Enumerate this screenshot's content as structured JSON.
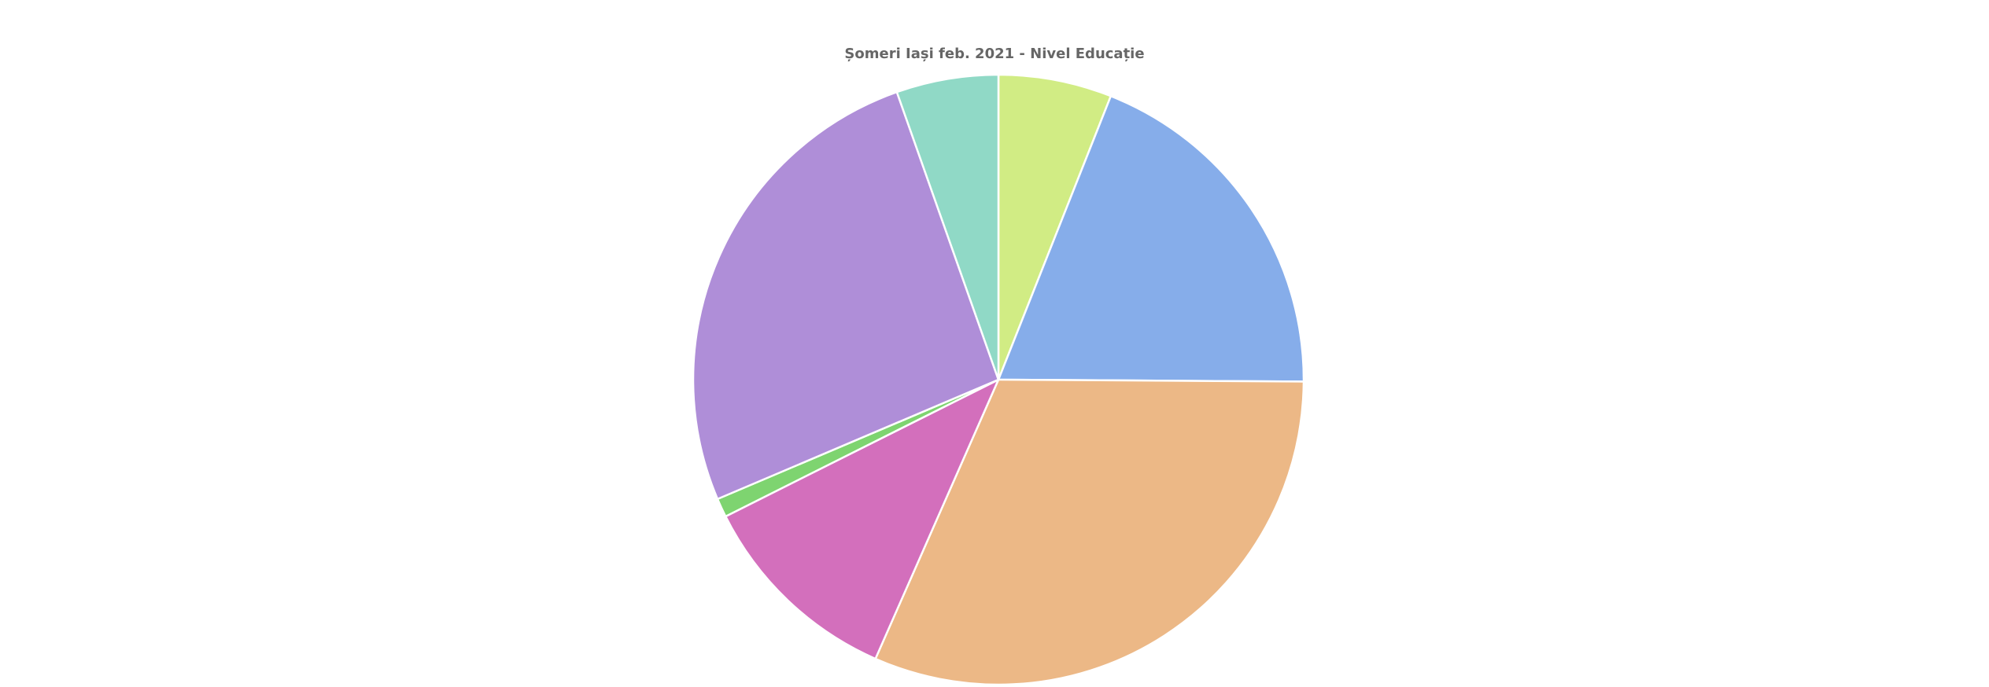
{
  "chart_data": {
    "type": "pie",
    "title": "Șomeri Iași feb. 2021 - Nivel Educație",
    "start_angle_deg": 0,
    "direction": "clockwise",
    "legend": "none",
    "slices": [
      {
        "value": 6.0,
        "color": "#d1ec84"
      },
      {
        "value": 19.1,
        "color": "#86adea"
      },
      {
        "value": 31.5,
        "color": "#ecb886"
      },
      {
        "value": 11.0,
        "color": "#d36fbc"
      },
      {
        "value": 1.0,
        "color": "#7ed470"
      },
      {
        "value": 26.0,
        "color": "#af8ed8"
      },
      {
        "value": 5.4,
        "color": "#90d9c6"
      }
    ]
  }
}
